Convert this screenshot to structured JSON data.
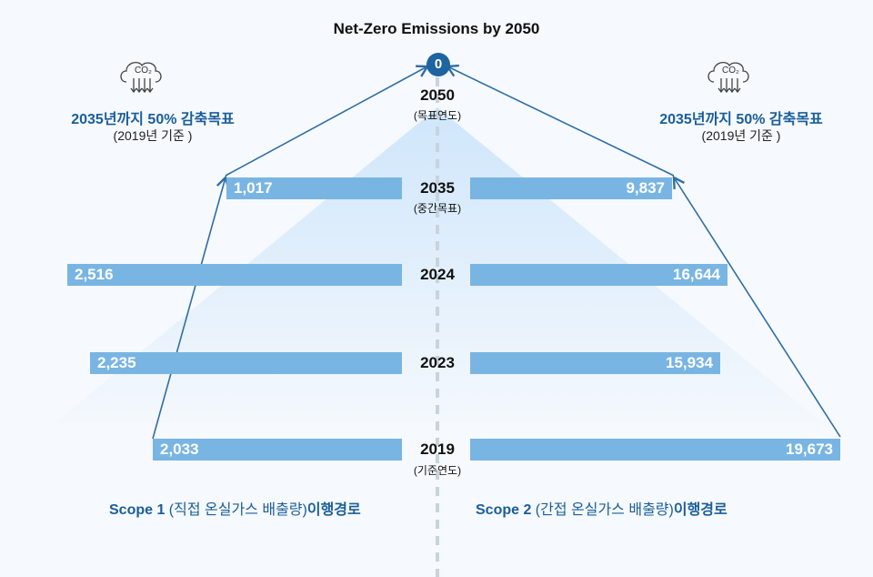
{
  "title": "Net-Zero Emissions by 2050",
  "target_value": "0",
  "years": [
    {
      "year": "2050",
      "note": "(목표연도)"
    },
    {
      "year": "2035",
      "note": "(중간목표)"
    },
    {
      "year": "2024",
      "note": ""
    },
    {
      "year": "2023",
      "note": ""
    },
    {
      "year": "2019",
      "note": "(기준연도)"
    }
  ],
  "scope1": {
    "values": [
      "1,017",
      "2,516",
      "2,235",
      "2,033"
    ],
    "label_bold": "Scope 1",
    "label_rest": " (직접 온실가스 배출량)",
    "label_end": "이행경로",
    "goal": "2035년까지 50% 감축목표",
    "base": "(2019년 기준 )"
  },
  "scope2": {
    "values": [
      "9,837",
      "16,644",
      "15,934",
      "19,673"
    ],
    "label_bold": "Scope 2",
    "label_rest": " (간접 온실가스 배출량)",
    "label_end": "이행경로",
    "goal": "2035년까지 50% 감축목표",
    "base": "(2019년 기준 )"
  },
  "co2_icon_text": "CO₂",
  "colors": {
    "bar": "#79b5e3",
    "accent": "#1a5e9a"
  }
}
